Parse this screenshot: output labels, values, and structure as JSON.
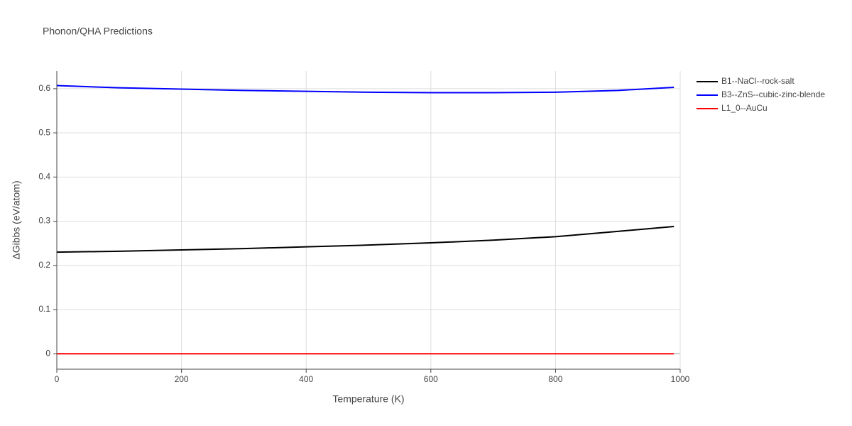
{
  "chart_data": {
    "type": "line",
    "title": "Phonon/QHA Predictions",
    "x_label": "Temperature (K)",
    "y_label": "ΔGibbs (eV/atom)",
    "x": [
      0,
      100,
      200,
      300,
      400,
      500,
      600,
      700,
      800,
      900,
      990
    ],
    "series": [
      {
        "name": "B1--NaCl--rock-salt",
        "color": "#000000",
        "values": [
          0.23,
          0.232,
          0.235,
          0.238,
          0.242,
          0.246,
          0.251,
          0.257,
          0.265,
          0.277,
          0.288
        ]
      },
      {
        "name": "B3--ZnS--cubic-zinc-blende",
        "color": "#0000ff",
        "values": [
          0.607,
          0.602,
          0.599,
          0.596,
          0.594,
          0.592,
          0.591,
          0.591,
          0.592,
          0.596,
          0.603
        ]
      },
      {
        "name": "L1_0--AuCu",
        "color": "#ff0000",
        "values": [
          0,
          0,
          0,
          0,
          0,
          0,
          0,
          0,
          0,
          0,
          0
        ]
      }
    ],
    "xlim": [
      0,
      1000
    ],
    "xticks": [
      0,
      200,
      400,
      600,
      800,
      1000
    ],
    "ylim": [
      -0.035,
      0.64
    ],
    "yticks": [
      0,
      0.1,
      0.2,
      0.3,
      0.4,
      0.5,
      0.6
    ],
    "grid": true,
    "legend": "outside-right"
  }
}
